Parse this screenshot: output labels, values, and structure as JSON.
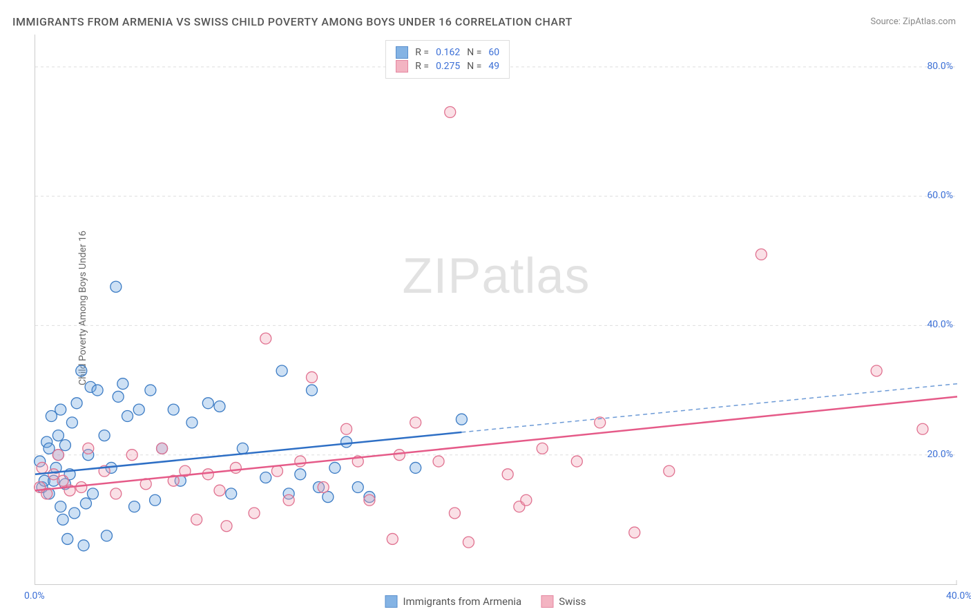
{
  "title": "IMMIGRANTS FROM ARMENIA VS SWISS CHILD POVERTY AMONG BOYS UNDER 16 CORRELATION CHART",
  "source_label": "Source: ",
  "source_value": "ZipAtlas.com",
  "ylabel": "Child Poverty Among Boys Under 16",
  "watermark": "ZIPatlas",
  "chart": {
    "type": "scatter",
    "background_color": "#ffffff",
    "grid_color": "#dddddd",
    "axis_color": "#cccccc",
    "tick_label_color": "#3b6fd6",
    "xlim": [
      0,
      40
    ],
    "ylim": [
      0,
      85
    ],
    "xtick_values": [
      0,
      40
    ],
    "xtick_labels": [
      "0.0%",
      "40.0%"
    ],
    "ytick_values": [
      20,
      40,
      60,
      80
    ],
    "ytick_labels": [
      "20.0%",
      "40.0%",
      "60.0%",
      "80.0%"
    ],
    "marker_radius": 8,
    "marker_fill_opacity": 0.35,
    "marker_stroke_width": 1.3,
    "trend_line_width": 2.5,
    "series": [
      {
        "name": "Immigrants from Armenia",
        "fill_color": "#6fa6e0",
        "stroke_color": "#3b7bc4",
        "line_color": "#2e6fc5",
        "r_value": "0.162",
        "n_value": "60",
        "trend": {
          "x1": 0,
          "y1": 17,
          "x2": 18.5,
          "y2": 23.5,
          "dash_x2": 40,
          "dash_y2": 31
        },
        "points": [
          [
            0.2,
            19
          ],
          [
            0.3,
            15
          ],
          [
            0.4,
            16
          ],
          [
            0.5,
            22
          ],
          [
            0.6,
            14
          ],
          [
            0.6,
            21
          ],
          [
            0.7,
            26
          ],
          [
            0.8,
            16
          ],
          [
            0.9,
            18
          ],
          [
            1.0,
            20
          ],
          [
            1.0,
            23
          ],
          [
            1.1,
            12
          ],
          [
            1.1,
            27
          ],
          [
            1.2,
            10
          ],
          [
            1.3,
            15.5
          ],
          [
            1.3,
            21.5
          ],
          [
            1.4,
            7
          ],
          [
            1.5,
            17
          ],
          [
            1.6,
            25
          ],
          [
            1.7,
            11
          ],
          [
            1.8,
            28
          ],
          [
            2.0,
            33
          ],
          [
            2.1,
            6
          ],
          [
            2.2,
            12.5
          ],
          [
            2.3,
            20
          ],
          [
            2.4,
            30.5
          ],
          [
            2.5,
            14
          ],
          [
            2.7,
            30
          ],
          [
            3.0,
            23
          ],
          [
            3.1,
            7.5
          ],
          [
            3.3,
            18
          ],
          [
            3.5,
            46
          ],
          [
            3.6,
            29
          ],
          [
            3.8,
            31
          ],
          [
            4.0,
            26
          ],
          [
            4.3,
            12
          ],
          [
            4.5,
            27
          ],
          [
            5.0,
            30
          ],
          [
            5.2,
            13
          ],
          [
            5.5,
            21
          ],
          [
            6.0,
            27
          ],
          [
            6.3,
            16
          ],
          [
            6.8,
            25
          ],
          [
            7.5,
            28
          ],
          [
            8.0,
            27.5
          ],
          [
            8.5,
            14
          ],
          [
            9.0,
            21
          ],
          [
            10.0,
            16.5
          ],
          [
            10.7,
            33
          ],
          [
            11.0,
            14
          ],
          [
            11.5,
            17
          ],
          [
            12.0,
            30
          ],
          [
            12.3,
            15
          ],
          [
            12.7,
            13.5
          ],
          [
            13.0,
            18
          ],
          [
            13.5,
            22
          ],
          [
            14.0,
            15
          ],
          [
            14.5,
            13.5
          ],
          [
            16.5,
            18
          ],
          [
            18.5,
            25.5
          ]
        ]
      },
      {
        "name": "Swiss",
        "fill_color": "#f2a7b8",
        "stroke_color": "#e0708f",
        "line_color": "#e55a88",
        "r_value": "0.275",
        "n_value": "49",
        "trend": {
          "x1": 0,
          "y1": 14.5,
          "x2": 40,
          "y2": 29
        },
        "points": [
          [
            0.2,
            15
          ],
          [
            0.3,
            18
          ],
          [
            0.5,
            14
          ],
          [
            0.8,
            17
          ],
          [
            1.0,
            20
          ],
          [
            1.2,
            16
          ],
          [
            1.5,
            14.5
          ],
          [
            2.0,
            15
          ],
          [
            2.3,
            21
          ],
          [
            3.0,
            17.5
          ],
          [
            3.5,
            14
          ],
          [
            4.2,
            20
          ],
          [
            4.8,
            15.5
          ],
          [
            5.5,
            21
          ],
          [
            6.0,
            16
          ],
          [
            6.5,
            17.5
          ],
          [
            7.0,
            10
          ],
          [
            7.5,
            17
          ],
          [
            8.0,
            14.5
          ],
          [
            8.3,
            9
          ],
          [
            8.7,
            18
          ],
          [
            9.5,
            11
          ],
          [
            10.0,
            38
          ],
          [
            10.5,
            17.5
          ],
          [
            11.0,
            13
          ],
          [
            11.5,
            19
          ],
          [
            12.0,
            32
          ],
          [
            12.5,
            15
          ],
          [
            13.5,
            24
          ],
          [
            14.0,
            19
          ],
          [
            14.5,
            13
          ],
          [
            15.5,
            7
          ],
          [
            15.8,
            20
          ],
          [
            16.5,
            25
          ],
          [
            17.5,
            19
          ],
          [
            18.0,
            73
          ],
          [
            18.2,
            11
          ],
          [
            18.8,
            6.5
          ],
          [
            20.5,
            17
          ],
          [
            21.0,
            12
          ],
          [
            21.3,
            13
          ],
          [
            22.0,
            21
          ],
          [
            23.5,
            19
          ],
          [
            24.5,
            25
          ],
          [
            26.0,
            8
          ],
          [
            27.5,
            17.5
          ],
          [
            31.5,
            51
          ],
          [
            36.5,
            33
          ],
          [
            38.5,
            24
          ]
        ]
      }
    ],
    "legend_top_r_label": "R  = ",
    "legend_top_n_label": "  N  = "
  }
}
